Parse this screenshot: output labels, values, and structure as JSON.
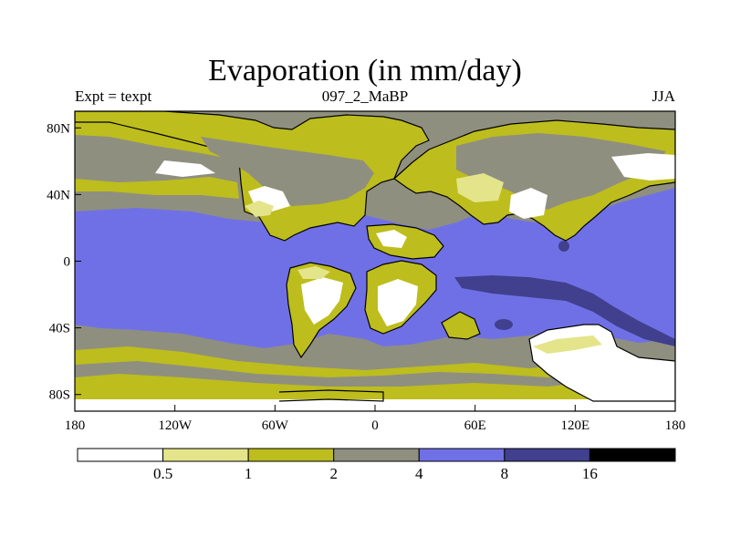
{
  "title": "Evaporation (in mm/day)",
  "subtitle_left": "Expt = texpt",
  "subtitle_center": "097_2_MaBP",
  "subtitle_right": "JJA",
  "map": {
    "projection": "cylindrical-equidistant",
    "lon_range": [
      -180,
      180
    ],
    "lat_range": [
      -90,
      90
    ],
    "x_ticks": [
      {
        "lon": -180,
        "label": "180"
      },
      {
        "lon": -120,
        "label": "120W"
      },
      {
        "lon": -60,
        "label": "60W"
      },
      {
        "lon": 0,
        "label": "0"
      },
      {
        "lon": 60,
        "label": "60E"
      },
      {
        "lon": 120,
        "label": "120E"
      },
      {
        "lon": 180,
        "label": "180"
      }
    ],
    "y_ticks": [
      {
        "lat": 80,
        "label": "80N"
      },
      {
        "lat": 40,
        "label": "40N"
      },
      {
        "lat": 0,
        "label": "0"
      },
      {
        "lat": -40,
        "label": "40S"
      },
      {
        "lat": -80,
        "label": "80S"
      }
    ]
  },
  "colorbar": {
    "levels": [
      "0.5",
      "1",
      "2",
      "4",
      "8",
      "16"
    ],
    "colors": [
      "#ffffff",
      "#e4e48a",
      "#bdbd1d",
      "#8f8f80",
      "#7070e6",
      "#40408e",
      "#000000"
    ]
  },
  "legend_colors": {
    "lt05": "#ffffff",
    "r05_1": "#e4e48a",
    "r1_2": "#bdbd1d",
    "r2_4": "#8f8f80",
    "r4_8": "#7070e6",
    "r8_16": "#40408e",
    "gt16": "#000000"
  }
}
